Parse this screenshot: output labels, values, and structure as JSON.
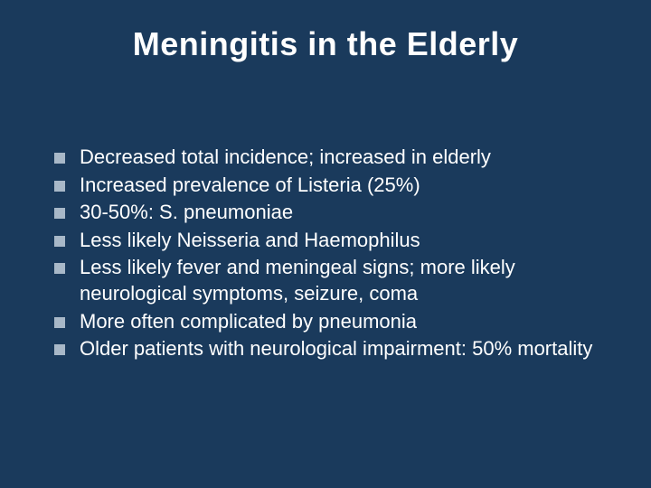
{
  "slide": {
    "background_color": "#1a3a5c",
    "text_color": "#ffffff",
    "title": "Meningitis in the Elderly",
    "title_fontsize": 36,
    "title_fontweight": "bold",
    "bullet_marker_color": "#a8b8c8",
    "bullet_marker_size": 12,
    "body_fontsize": 22,
    "bullets": [
      "Decreased total  incidence; increased in elderly",
      "Increased prevalence of Listeria (25%)",
      "30-50%:  S. pneumoniae",
      "Less likely Neisseria and Haemophilus",
      "Less likely fever and meningeal signs; more likely neurological symptoms, seizure, coma",
      "More often complicated by pneumonia",
      "Older patients with neurological impairment:  50% mortality"
    ]
  }
}
